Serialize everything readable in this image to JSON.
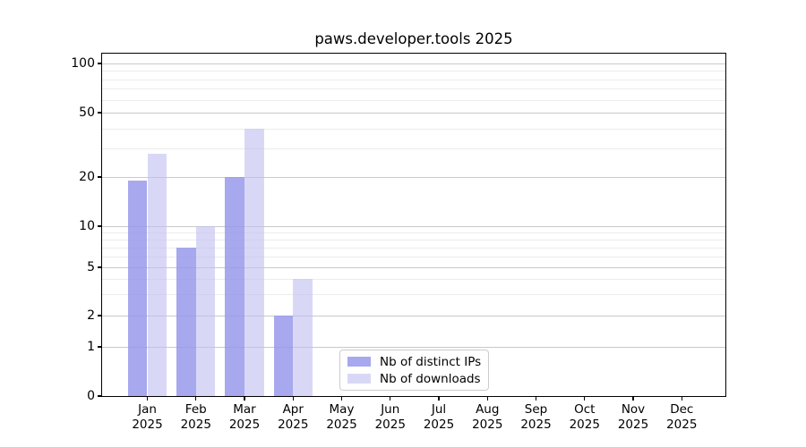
{
  "title": "paws.developer.tools 2025",
  "chart_data": {
    "type": "bar",
    "title": "paws.developer.tools 2025",
    "categories": [
      {
        "month": "Jan",
        "year": "2025"
      },
      {
        "month": "Feb",
        "year": "2025"
      },
      {
        "month": "Mar",
        "year": "2025"
      },
      {
        "month": "Apr",
        "year": "2025"
      },
      {
        "month": "May",
        "year": "2025"
      },
      {
        "month": "Jun",
        "year": "2025"
      },
      {
        "month": "Jul",
        "year": "2025"
      },
      {
        "month": "Aug",
        "year": "2025"
      },
      {
        "month": "Sep",
        "year": "2025"
      },
      {
        "month": "Oct",
        "year": "2025"
      },
      {
        "month": "Nov",
        "year": "2025"
      },
      {
        "month": "Dec",
        "year": "2025"
      }
    ],
    "series": [
      {
        "name": "Nb of distinct IPs",
        "color": "#a8a8ee",
        "values": [
          19,
          7,
          20,
          2,
          0,
          0,
          0,
          0,
          0,
          0,
          0,
          0
        ]
      },
      {
        "name": "Nb of downloads",
        "color": "#d8d8f6",
        "values": [
          28,
          10,
          40,
          4,
          0,
          0,
          0,
          0,
          0,
          0,
          0,
          0
        ]
      }
    ],
    "y_ticks": [
      0,
      1,
      2,
      5,
      10,
      20,
      50,
      100
    ],
    "ylim": [
      0,
      100
    ],
    "scale": "log-like (linear below 1)",
    "grid": "on",
    "legend_position": "lower center",
    "colors": {
      "major_grid": "#c9c9c9",
      "minor_grid": "#ececec",
      "axes": "#000000",
      "background": "#ffffff"
    }
  }
}
